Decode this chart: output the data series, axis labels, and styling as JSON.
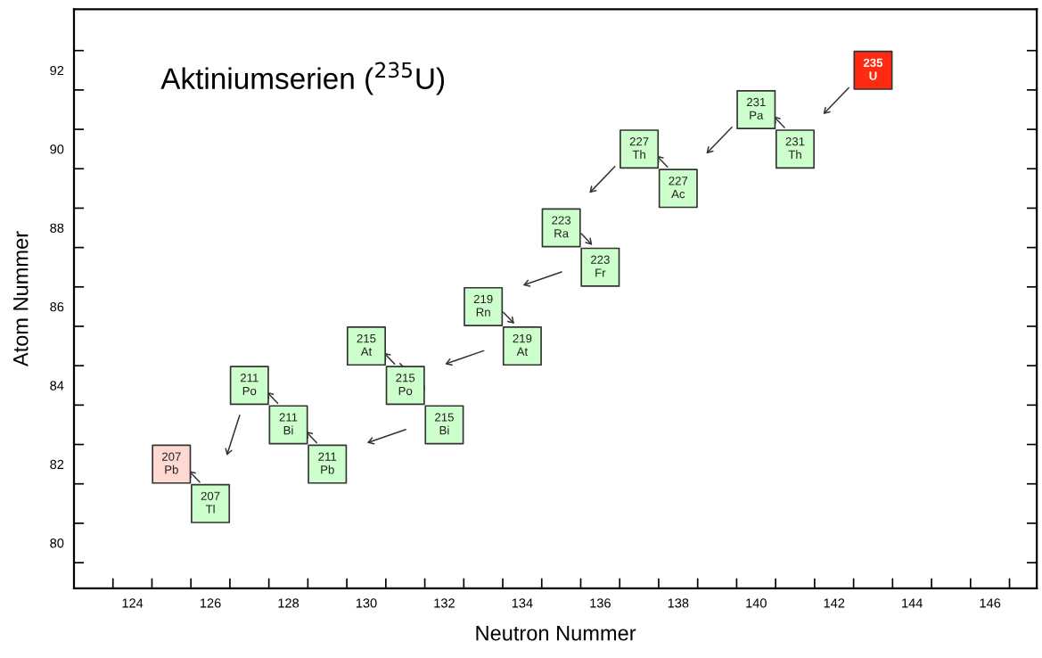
{
  "chart_data": {
    "type": "scatter",
    "title": "Aktiniumserien ($^{235}$U)",
    "xlabel": "Neutron Nummer",
    "ylabel": "Atom Nummer",
    "x": [
      143,
      141,
      140,
      138,
      137,
      135,
      136,
      133,
      134,
      131,
      130,
      132,
      129,
      128,
      127,
      126,
      125
    ],
    "values": [
      92,
      90,
      91,
      89,
      90,
      88,
      87,
      86,
      85,
      84,
      85,
      83,
      82,
      83,
      84,
      81,
      82
    ],
    "colors": [
      "#ff2a12",
      "#ccffcc",
      "#ccffcc",
      "#ccffcc",
      "#ccffcc",
      "#ccffcc",
      "#ccffcc",
      "#ccffcc",
      "#ccffcc",
      "#ccffcc",
      "#ccffcc",
      "#ccffcc",
      "#ccffcc",
      "#ccffcc",
      "#ccffcc",
      "#ccffcc",
      "#ffd8d2"
    ],
    "marker": "square",
    "grid": false,
    "annotations": [
      {
        "text": "235\nU",
        "x": 143,
        "y": 92
      },
      {
        "text": "231\nTh",
        "x": 141,
        "y": 90
      },
      {
        "text": "231\nPa",
        "x": 140,
        "y": 91
      },
      {
        "text": "227\nAc",
        "x": 138,
        "y": 89
      },
      {
        "text": "227\nTh",
        "x": 137,
        "y": 90
      },
      {
        "text": "223\nRa",
        "x": 135,
        "y": 88
      },
      {
        "text": "223\nFr",
        "x": 136,
        "y": 87
      },
      {
        "text": "219\nRn",
        "x": 133,
        "y": 86
      },
      {
        "text": "219\nAt",
        "x": 134,
        "y": 85
      },
      {
        "text": "215\nPo",
        "x": 131,
        "y": 84
      },
      {
        "text": "215\nAt",
        "x": 130,
        "y": 85
      },
      {
        "text": "215\nBi",
        "x": 132,
        "y": 83
      },
      {
        "text": "211\nPb",
        "x": 129,
        "y": 82
      },
      {
        "text": "211\nBi",
        "x": 128,
        "y": 83
      },
      {
        "text": "211\nPo",
        "x": 127,
        "y": 84
      },
      {
        "text": "207\nTl",
        "x": 126,
        "y": 81
      },
      {
        "text": "207\nPb",
        "x": 125,
        "y": 82
      }
    ],
    "xlim": [
      122.5,
      147.2
    ],
    "ylim": [
      78.85,
      93.55
    ],
    "xticks": [
      {
        "value": 123.5,
        "label": null
      },
      124,
      {
        "value": 124.5,
        "label": null
      },
      {
        "value": 125.5,
        "label": null
      },
      126,
      {
        "value": 126.5,
        "label": null
      },
      {
        "value": 127.5,
        "label": null
      },
      128,
      {
        "value": 128.5,
        "label": null
      },
      {
        "value": 129.5,
        "label": null
      },
      130,
      {
        "value": 130.5,
        "label": null
      },
      {
        "value": 131.5,
        "label": null
      },
      132,
      {
        "value": 132.5,
        "label": null
      },
      {
        "value": 133.5,
        "label": null
      },
      134,
      {
        "value": 134.5,
        "label": null
      },
      {
        "value": 135.5,
        "label": null
      },
      136,
      {
        "value": 136.5,
        "label": null
      },
      {
        "value": 137.5,
        "label": null
      },
      138,
      {
        "value": 138.5,
        "label": null
      },
      {
        "value": 139.5,
        "label": null
      },
      140,
      {
        "value": 140.5,
        "label": null
      },
      {
        "value": 141.5,
        "label": null
      },
      142,
      {
        "value": 142.5,
        "label": null
      },
      {
        "value": 143.5,
        "label": null
      },
      144,
      {
        "value": 144.5,
        "label": null
      },
      {
        "value": 145.5,
        "label": null
      },
      146,
      {
        "value": 146.5,
        "label": null
      }
    ],
    "yticks": [
      {
        "value": 79.5,
        "label": null
      },
      80,
      {
        "value": 80.5,
        "label": null
      },
      {
        "value": 81.5,
        "label": null
      },
      82,
      {
        "value": 82.5,
        "label": null
      },
      {
        "value": 83.5,
        "label": null
      },
      84,
      {
        "value": 84.5,
        "label": null
      },
      {
        "value": 85.5,
        "label": null
      },
      86,
      {
        "value": 86.5,
        "label": null
      },
      {
        "value": 87.5,
        "label": null
      },
      88,
      {
        "value": 88.5,
        "label": null
      },
      {
        "value": 89.5,
        "label": null
      },
      90,
      {
        "value": 90.5,
        "label": null
      },
      {
        "value": 91.5,
        "label": null
      },
      92,
      {
        "value": 92.5,
        "label": null
      }
    ]
  }
}
